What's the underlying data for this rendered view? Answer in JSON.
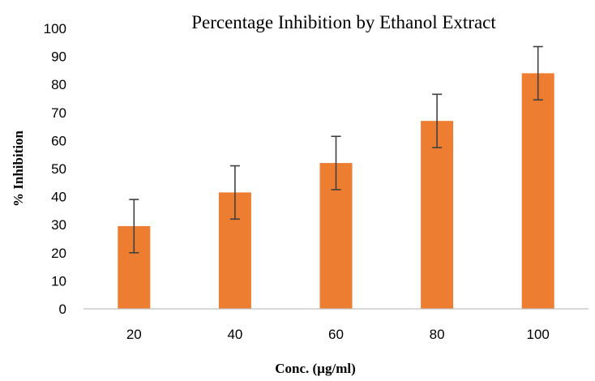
{
  "chart_data": {
    "type": "bar",
    "title": "Percentage Inhibition by Ethanol Extract",
    "xlabel": "Conc. (µg/ml)",
    "ylabel": "% Inhibition",
    "categories": [
      "20",
      "40",
      "60",
      "80",
      "100"
    ],
    "values": [
      29.5,
      41.5,
      52,
      67,
      84
    ],
    "error": [
      9.5,
      9.5,
      9.5,
      9.5,
      9.5
    ],
    "ylim": [
      0,
      100
    ],
    "yticks": [
      0,
      10,
      20,
      30,
      40,
      50,
      60,
      70,
      80,
      90,
      100
    ],
    "grid": false,
    "legend": "none",
    "bar_color": "#ED7D31",
    "error_bar_color": "#404040"
  }
}
